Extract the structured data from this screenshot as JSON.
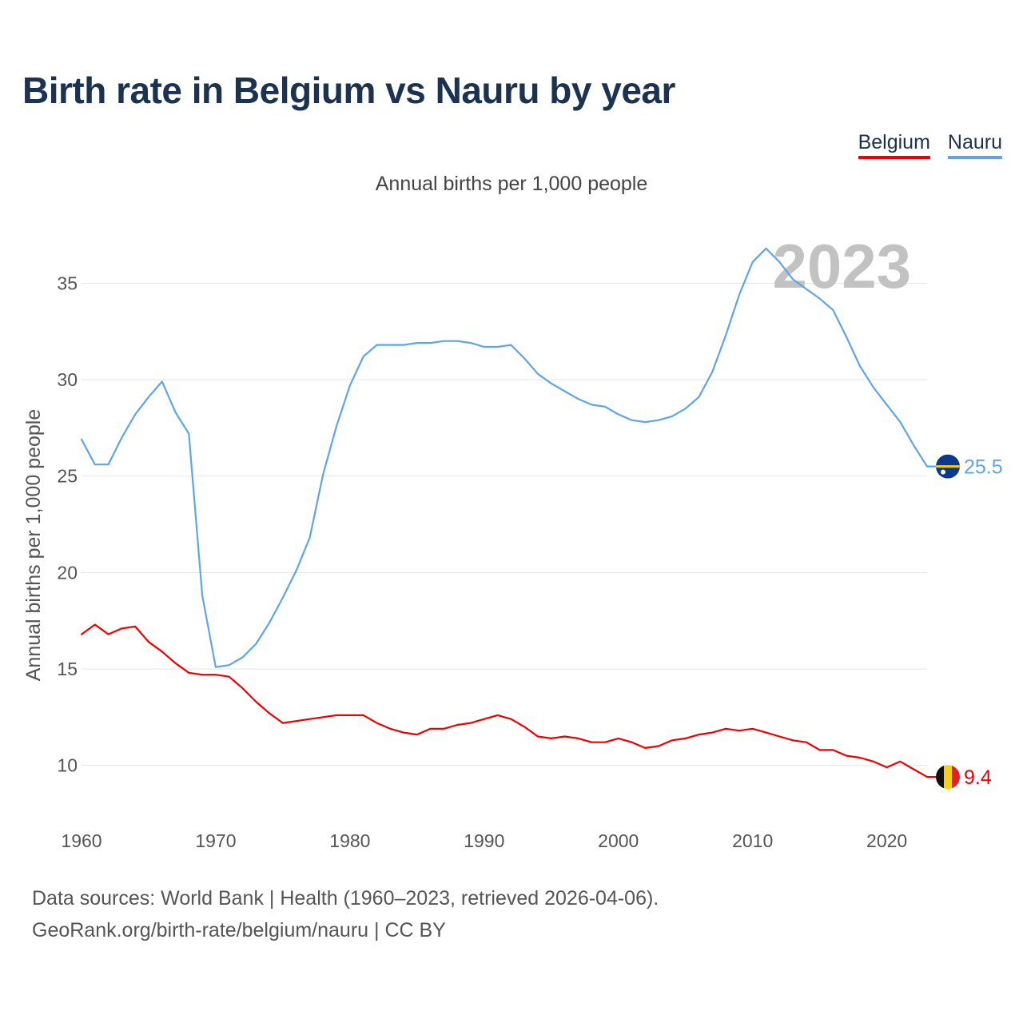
{
  "header": {
    "title": "Birth rate in Belgium vs Nauru by year",
    "subtitle": "Annual births per 1,000 people"
  },
  "legend": [
    {
      "name": "Belgium",
      "color": "#ee0000"
    },
    {
      "name": "Nauru",
      "color": "#5ea5e8"
    }
  ],
  "footer": {
    "line1": "Data sources: World Bank | Health (1960–2023, retrieved 2026-04-06).",
    "line2": "GeoRank.org/birth-rate/belgium/nauru | CC BY"
  },
  "chart_data": {
    "type": "line",
    "title": "Birth rate in Belgium vs Nauru by year",
    "subtitle": "Annual births per 1,000 people",
    "xlabel": "",
    "ylabel": "Annual births per 1,000 people",
    "year_label": "2023",
    "xlim": [
      1960,
      2023
    ],
    "ylim": [
      7.5,
      37.5
    ],
    "xticks": [
      1960,
      1970,
      1980,
      1990,
      2000,
      2010,
      2020
    ],
    "yticks": [
      10,
      15,
      20,
      25,
      30,
      35
    ],
    "grid": true,
    "legend_position": "top-right",
    "x": [
      1960,
      1961,
      1962,
      1963,
      1964,
      1965,
      1966,
      1967,
      1968,
      1969,
      1970,
      1971,
      1972,
      1973,
      1974,
      1975,
      1976,
      1977,
      1978,
      1979,
      1980,
      1981,
      1982,
      1983,
      1984,
      1985,
      1986,
      1987,
      1988,
      1989,
      1990,
      1991,
      1992,
      1993,
      1994,
      1995,
      1996,
      1997,
      1998,
      1999,
      2000,
      2001,
      2002,
      2003,
      2004,
      2005,
      2006,
      2007,
      2008,
      2009,
      2010,
      2011,
      2012,
      2013,
      2014,
      2015,
      2016,
      2017,
      2018,
      2019,
      2020,
      2021,
      2022,
      2023
    ],
    "series": [
      {
        "name": "Nauru",
        "color": "#5ea5e8",
        "end_label": "25.5",
        "values": [
          26.9,
          25.6,
          25.6,
          27.0,
          28.2,
          29.1,
          29.9,
          28.3,
          27.2,
          18.8,
          15.1,
          15.2,
          15.6,
          16.3,
          17.4,
          18.7,
          20.1,
          21.8,
          25.1,
          27.6,
          29.7,
          31.2,
          31.8,
          31.8,
          31.8,
          31.9,
          31.9,
          32.0,
          32.0,
          31.9,
          31.7,
          31.7,
          31.8,
          31.1,
          30.3,
          29.8,
          29.4,
          29.0,
          28.7,
          28.6,
          28.2,
          27.9,
          27.8,
          27.9,
          28.1,
          28.5,
          29.1,
          30.4,
          32.3,
          34.4,
          36.1,
          36.8,
          36.1,
          35.2,
          34.7,
          34.2,
          33.6,
          32.2,
          30.7,
          29.6,
          28.7,
          27.8,
          26.6,
          25.5
        ]
      },
      {
        "name": "Belgium",
        "color": "#ee0000",
        "end_label": "9.4",
        "values": [
          16.8,
          17.3,
          16.8,
          17.1,
          17.2,
          16.4,
          15.9,
          15.3,
          14.8,
          14.7,
          14.7,
          14.6,
          14.0,
          13.3,
          12.7,
          12.2,
          12.3,
          12.4,
          12.5,
          12.6,
          12.6,
          12.6,
          12.2,
          11.9,
          11.7,
          11.6,
          11.9,
          11.9,
          12.1,
          12.2,
          12.4,
          12.6,
          12.4,
          12.0,
          11.5,
          11.4,
          11.5,
          11.4,
          11.2,
          11.2,
          11.4,
          11.2,
          10.9,
          11.0,
          11.3,
          11.4,
          11.6,
          11.7,
          11.9,
          11.8,
          11.9,
          11.7,
          11.5,
          11.3,
          11.2,
          10.8,
          10.8,
          10.5,
          10.4,
          10.2,
          9.9,
          10.2,
          9.8,
          9.4
        ]
      }
    ]
  }
}
